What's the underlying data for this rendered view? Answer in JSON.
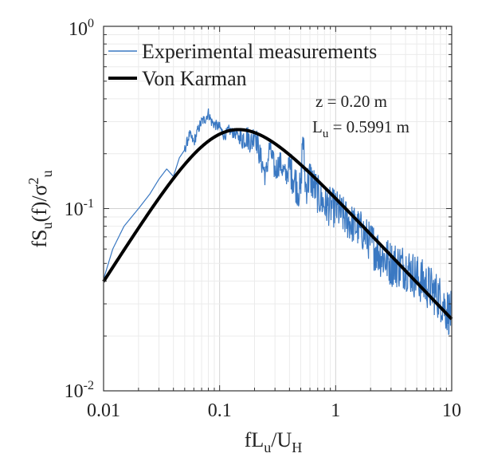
{
  "chart_data": {
    "type": "line",
    "xscale": "log",
    "yscale": "log",
    "xlim": [
      0.01,
      10
    ],
    "ylim": [
      0.01,
      1
    ],
    "grid": true,
    "legend_position": "top-left",
    "xticks": [
      "0.01",
      "0.1",
      "1",
      "10"
    ],
    "yticks": [
      {
        "base": "10",
        "exp": "-2"
      },
      {
        "base": "10",
        "exp": "-1"
      },
      {
        "base": "10",
        "exp": "0"
      }
    ],
    "xlabel": {
      "main": "fL",
      "sub1": "u",
      "slash": "/U",
      "sub2": "H"
    },
    "ylabel": {
      "f": "fS",
      "sub": "u",
      "mid": "(f)/σ",
      "sup": "2",
      "sub2": "u"
    },
    "annotations": {
      "z": "z = 0.20 m",
      "lu_main": "L",
      "lu_sub": "u",
      "lu_value": " = 0.5991 m"
    },
    "series": [
      {
        "name": "Experimental measurements",
        "color": "#3a78c2",
        "style": "thin",
        "x": [
          0.01,
          0.012,
          0.015,
          0.02,
          0.025,
          0.03,
          0.035,
          0.04,
          0.045,
          0.05,
          0.055,
          0.06,
          0.065,
          0.07,
          0.075,
          0.08,
          0.085,
          0.09,
          0.1,
          0.11,
          0.12,
          0.13,
          0.14,
          0.15,
          0.17,
          0.19,
          0.2,
          0.22,
          0.25,
          0.27,
          0.3,
          0.33,
          0.37,
          0.4,
          0.45,
          0.5,
          0.52,
          0.55,
          0.6,
          0.7,
          0.8,
          1.0,
          1.3,
          1.7,
          2.0,
          2.5,
          3.0,
          4.0,
          5.0,
          6.0,
          7.0,
          8.0,
          9.0,
          10.0
        ],
        "y": [
          0.041,
          0.06,
          0.08,
          0.1,
          0.12,
          0.145,
          0.165,
          0.15,
          0.19,
          0.21,
          0.255,
          0.23,
          0.27,
          0.3,
          0.31,
          0.335,
          0.3,
          0.29,
          0.28,
          0.25,
          0.27,
          0.26,
          0.255,
          0.24,
          0.25,
          0.23,
          0.27,
          0.2,
          0.15,
          0.22,
          0.16,
          0.18,
          0.15,
          0.17,
          0.14,
          0.12,
          0.26,
          0.13,
          0.15,
          0.12,
          0.105,
          0.1,
          0.085,
          0.075,
          0.065,
          0.055,
          0.05,
          0.048,
          0.042,
          0.038,
          0.035,
          0.032,
          0.028,
          0.026
        ]
      },
      {
        "name": "Von Karman",
        "color": "#000000",
        "style": "thick",
        "model": "von_karman",
        "x_range": [
          0.01,
          10
        ]
      }
    ]
  }
}
